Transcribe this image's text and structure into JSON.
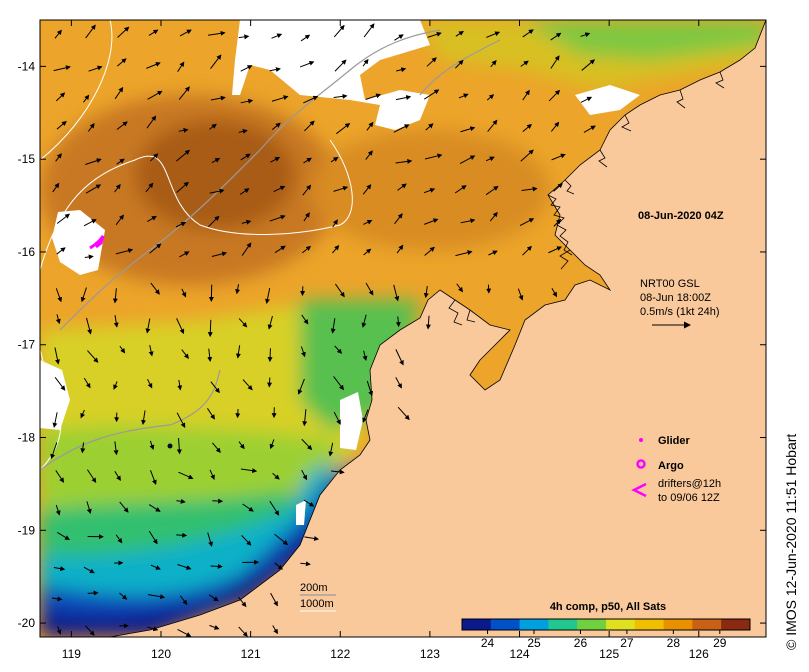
{
  "map": {
    "timestamp": "08-Jun-2020 04Z",
    "lon_ticks": [
      "119",
      "120",
      "121",
      "122",
      "123",
      "124",
      "125",
      "126"
    ],
    "lat_ticks": [
      "-14",
      "-15",
      "-16",
      "-17",
      "-18",
      "-19",
      "-20"
    ],
    "lon_range": [
      118.65,
      126.75
    ],
    "lat_range": [
      -20.15,
      -13.5
    ],
    "current_legend": {
      "line1": "NRT00 GSL",
      "line2": "08-Jun 18:00Z",
      "line3": "0.5m/s (1kt 24h)"
    },
    "markers_legend": {
      "glider": "Glider",
      "argo": "Argo",
      "drifters_line1": "drifters@12h",
      "drifters_line2": "to 09/06 12Z"
    },
    "depth_legend": {
      "line1": "200m",
      "line2": "1000m"
    },
    "colorbar": {
      "title": "4h comp, p50, All Sats",
      "ticks": [
        "24",
        "25",
        "26",
        "27",
        "28",
        "29"
      ],
      "colors": [
        "#0a1a8c",
        "#0050c8",
        "#00a0e0",
        "#20c890",
        "#70d040",
        "#e0e020",
        "#f0c000",
        "#e89000",
        "#c86018",
        "#8a2a10"
      ]
    },
    "credit": "© IMOS 12-Jun-2020 11:51 Hobart",
    "colors": {
      "land": "#f9c89b",
      "marker": "#ff00ff",
      "sea_warm": "#e89a20",
      "sea_hot": "#b86418",
      "sea_cool": "#1a2a9a"
    }
  }
}
